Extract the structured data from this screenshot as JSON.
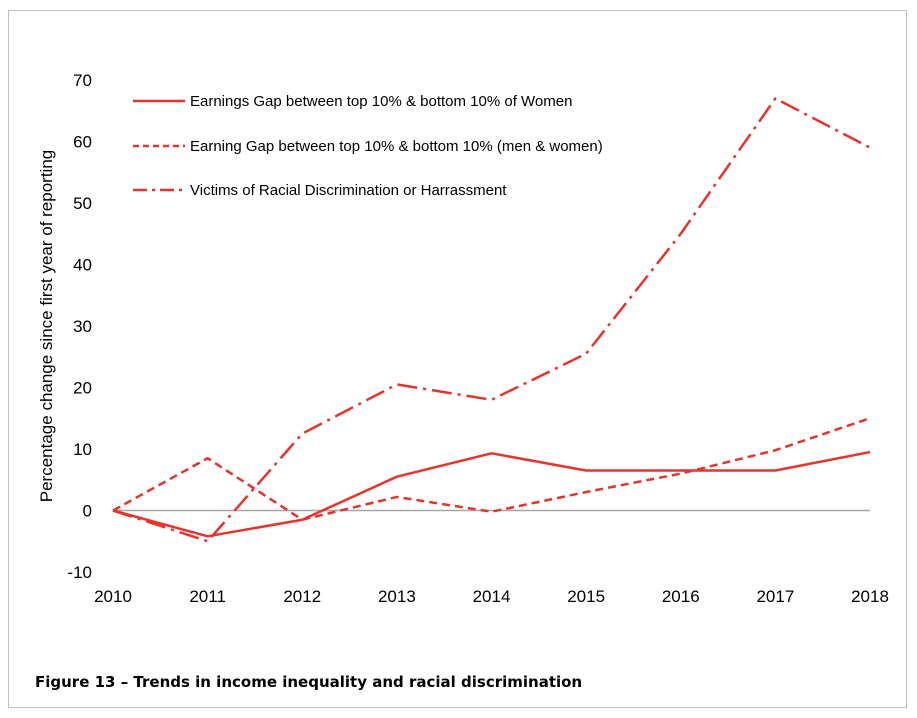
{
  "caption": "Figure 13 – Trends in income inequality and racial discrimination",
  "chart_data": {
    "type": "line",
    "title": "",
    "xlabel": "",
    "ylabel": "Percentage change since first year of reporting",
    "x": [
      "2010",
      "2011",
      "2012",
      "2013",
      "2014",
      "2015",
      "2016",
      "2017",
      "2018"
    ],
    "ylim": [
      -10,
      70
    ],
    "yticks": [
      -10,
      0,
      10,
      20,
      30,
      40,
      50,
      60,
      70
    ],
    "grid": false,
    "legend_position": "top-left",
    "series": [
      {
        "name": "Earnings Gap between top 10% & bottom 10% of Women",
        "style": "solid",
        "color": "#e8332d",
        "values": [
          0,
          -4.2,
          -1.5,
          5.5,
          9.3,
          6.5,
          6.5,
          6.5,
          9.5
        ]
      },
      {
        "name": "Earning Gap between top 10% & bottom 10% (men & women)",
        "style": "dashed",
        "color": "#e8332d",
        "values": [
          0,
          8.5,
          -1.5,
          2.2,
          -0.2,
          3.0,
          6.0,
          9.8,
          15.0
        ]
      },
      {
        "name": "Victims of Racial Discrimination or Harrassment",
        "style": "dashdot",
        "color": "#e8332d",
        "values": [
          0,
          -5.0,
          12.5,
          20.5,
          18.0,
          25.5,
          45.0,
          67.0,
          59.0
        ]
      }
    ]
  }
}
